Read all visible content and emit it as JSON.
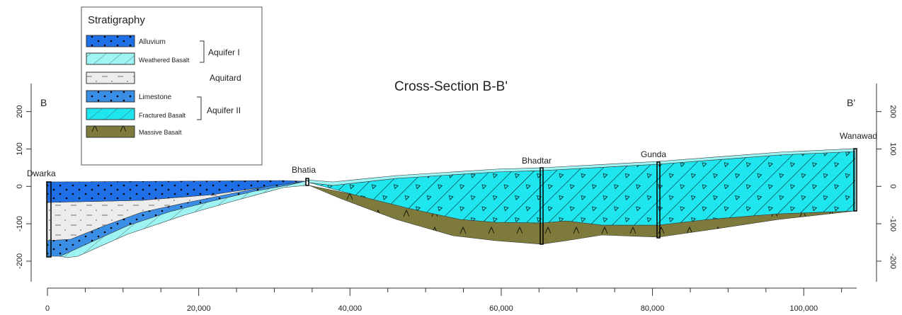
{
  "title": "Cross-Section B-B'",
  "section_ends": [
    "B",
    "B'"
  ],
  "wells": [
    "Dwarka",
    "Bhatia",
    "Bhadtar",
    "Gunda",
    "Wanawad"
  ],
  "legend": {
    "title": "Stratigraphy",
    "units": [
      "Alluvium",
      "Weathered Basalt",
      "Limestone",
      "Fractured Basalt",
      "Massive Basalt"
    ],
    "groups": [
      "Aquifer I",
      "Aquitard",
      "Aquifer II"
    ]
  },
  "axes": {
    "xlim": [
      0,
      107000
    ],
    "xticks": [
      {
        "value": 0,
        "label": "0"
      },
      {
        "value": 20000,
        "label": "20,000"
      },
      {
        "value": 40000,
        "label": "40,000"
      },
      {
        "value": 60000,
        "label": "60,000"
      },
      {
        "value": 80000,
        "label": "80,000"
      },
      {
        "value": 100000,
        "label": "100,000"
      }
    ],
    "xminorticks": [
      5000,
      10000,
      15000,
      25000,
      30000,
      35000,
      45000,
      50000,
      55000,
      65000,
      70000,
      75000,
      85000,
      90000,
      95000,
      105000
    ],
    "ylim": [
      -255,
      275
    ],
    "yticks": [
      200,
      100,
      0,
      -100,
      -200
    ]
  }
}
